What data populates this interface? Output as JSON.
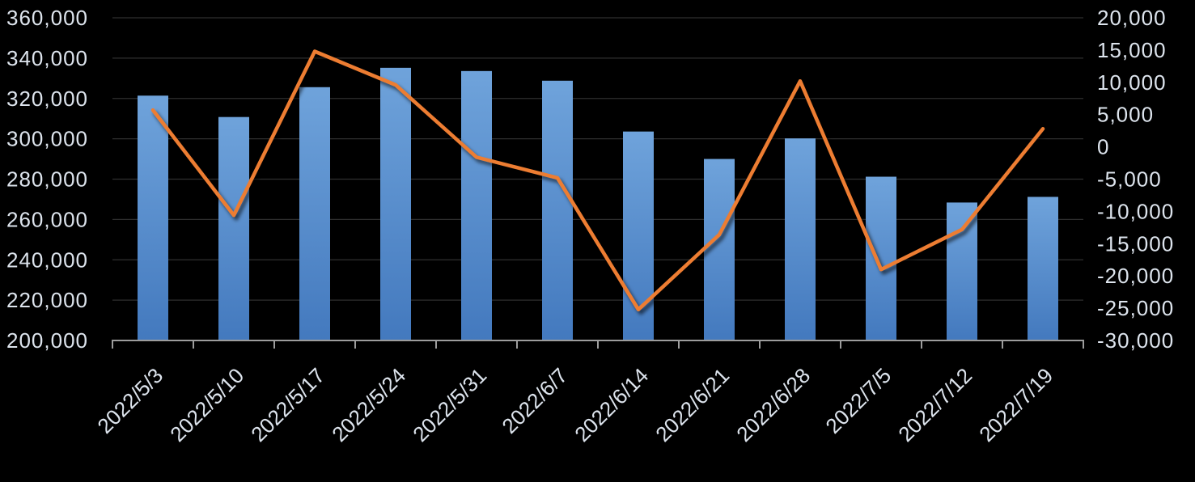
{
  "chart_data": {
    "type": "combo_bar_line",
    "title": "",
    "xlabel": "",
    "ylabel": "",
    "background_color": "#000000",
    "text_color": "#dde4ed",
    "gridline_color": "#2f2f2f",
    "axis_line_color": "#9d9d9d",
    "grid": true,
    "legend": false,
    "categories": [
      "2022/5/3",
      "2022/5/10",
      "2022/5/17",
      "2022/5/24",
      "2022/5/31",
      "2022/6/7",
      "2022/6/14",
      "2022/6/21",
      "2022/6/28",
      "2022/7/5",
      "2022/7/12",
      "2022/7/19"
    ],
    "series": [
      {
        "id": "weekly-level-bars",
        "type": "bar",
        "axis": "left",
        "color_top": "#6FA3DB",
        "color_bottom": "#4379BE",
        "values": [
          321400,
          310800,
          325600,
          335200,
          333600,
          328800,
          303600,
          290000,
          300200,
          281200,
          268400,
          271200
        ]
      },
      {
        "id": "weekly-change-line",
        "type": "line",
        "axis": "right",
        "color": "#ED7D31",
        "values": [
          5700,
          -10600,
          14800,
          9600,
          -1600,
          -4800,
          -25200,
          -13600,
          10200,
          -19000,
          -12800,
          2800
        ]
      }
    ],
    "left_axis": {
      "min": 200000,
      "max": 360000,
      "step": 20000,
      "tick_labels": [
        "360,000",
        "340,000",
        "320,000",
        "300,000",
        "280,000",
        "260,000",
        "240,000",
        "220,000",
        "200,000"
      ]
    },
    "right_axis": {
      "min": -30000,
      "max": 20000,
      "step": 5000,
      "tick_labels": [
        "20,000",
        "15,000",
        "10,000",
        "5,000",
        "0",
        "-5,000",
        "-10,000",
        "-15,000",
        "-20,000",
        "-25,000",
        "-30,000"
      ]
    }
  }
}
